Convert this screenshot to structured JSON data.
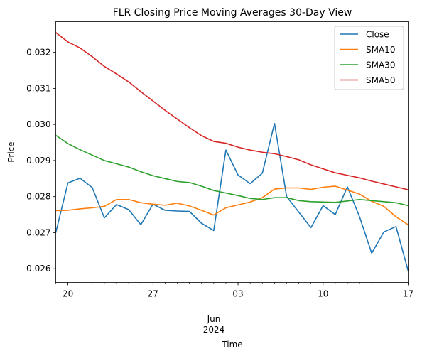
{
  "chart_data": {
    "type": "line",
    "title": "FLR Closing Price Moving Averages 30-Day View",
    "xlabel": "Time",
    "ylabel": "Price",
    "x": [
      "2024-05-19",
      "2024-05-20",
      "2024-05-21",
      "2024-05-22",
      "2024-05-23",
      "2024-05-24",
      "2024-05-25",
      "2024-05-26",
      "2024-05-27",
      "2024-05-28",
      "2024-05-29",
      "2024-05-30",
      "2024-05-31",
      "2024-06-01",
      "2024-06-02",
      "2024-06-03",
      "2024-06-04",
      "2024-06-05",
      "2024-06-06",
      "2024-06-07",
      "2024-06-08",
      "2024-06-09",
      "2024-06-10",
      "2024-06-11",
      "2024-06-12",
      "2024-06-13",
      "2024-06-14",
      "2024-06-15",
      "2024-06-16",
      "2024-06-17"
    ],
    "xlim": [
      "2024-05-19",
      "2024-06-17"
    ],
    "ylim": [
      0.02562,
      0.03285
    ],
    "x_ticks": [
      {
        "date": "2024-05-20",
        "label": "20"
      },
      {
        "date": "2024-05-27",
        "label": "27"
      },
      {
        "date": "2024-06-03",
        "label": "03"
      },
      {
        "date": "2024-06-10",
        "label": "10"
      },
      {
        "date": "2024-06-17",
        "label": "17"
      }
    ],
    "x_secondary_label_month": "Jun",
    "x_secondary_label_year": "2024",
    "y_ticks": [
      "0.026",
      "0.027",
      "0.028",
      "0.029",
      "0.030",
      "0.031",
      "0.032"
    ],
    "grid": false,
    "legend_position": "top-right",
    "series": [
      {
        "name": "Close",
        "color": "#1f77b4",
        "values": [
          0.027,
          0.02838,
          0.02851,
          0.02825,
          0.02741,
          0.02778,
          0.02764,
          0.02722,
          0.02779,
          0.02762,
          0.0276,
          0.02759,
          0.02726,
          0.02706,
          0.02929,
          0.0286,
          0.02836,
          0.02865,
          0.03003,
          0.028,
          0.02757,
          0.02714,
          0.02775,
          0.0275,
          0.02827,
          0.02744,
          0.02643,
          0.02702,
          0.02717,
          0.02594
        ]
      },
      {
        "name": "SMA10",
        "color": "#ff7f0e",
        "values": [
          0.02761,
          0.02762,
          0.02766,
          0.02769,
          0.02773,
          0.02792,
          0.02792,
          0.02783,
          0.02779,
          0.02776,
          0.02782,
          0.02774,
          0.02762,
          0.02749,
          0.02769,
          0.02777,
          0.02785,
          0.02797,
          0.02821,
          0.02824,
          0.02824,
          0.0282,
          0.02826,
          0.02829,
          0.02818,
          0.02807,
          0.02787,
          0.02773,
          0.02744,
          0.02722
        ]
      },
      {
        "name": "SMA30",
        "color": "#2ca02c",
        "values": [
          0.0297,
          0.02947,
          0.0293,
          0.02915,
          0.029,
          0.02891,
          0.02882,
          0.02869,
          0.02858,
          0.0285,
          0.02842,
          0.02839,
          0.02829,
          0.02817,
          0.0281,
          0.02803,
          0.02795,
          0.02792,
          0.02797,
          0.02797,
          0.02789,
          0.02786,
          0.02785,
          0.02784,
          0.02788,
          0.02792,
          0.02789,
          0.02786,
          0.02783,
          0.02775
        ]
      },
      {
        "name": "SMA50",
        "color": "#d62728",
        "values": [
          0.03255,
          0.03229,
          0.03212,
          0.03188,
          0.03161,
          0.0314,
          0.03118,
          0.03091,
          0.03065,
          0.03039,
          0.03015,
          0.02991,
          0.02969,
          0.02953,
          0.02948,
          0.02937,
          0.02929,
          0.02923,
          0.02919,
          0.02911,
          0.02902,
          0.02888,
          0.02877,
          0.02866,
          0.02859,
          0.02852,
          0.02843,
          0.02835,
          0.02827,
          0.02819
        ]
      }
    ]
  }
}
